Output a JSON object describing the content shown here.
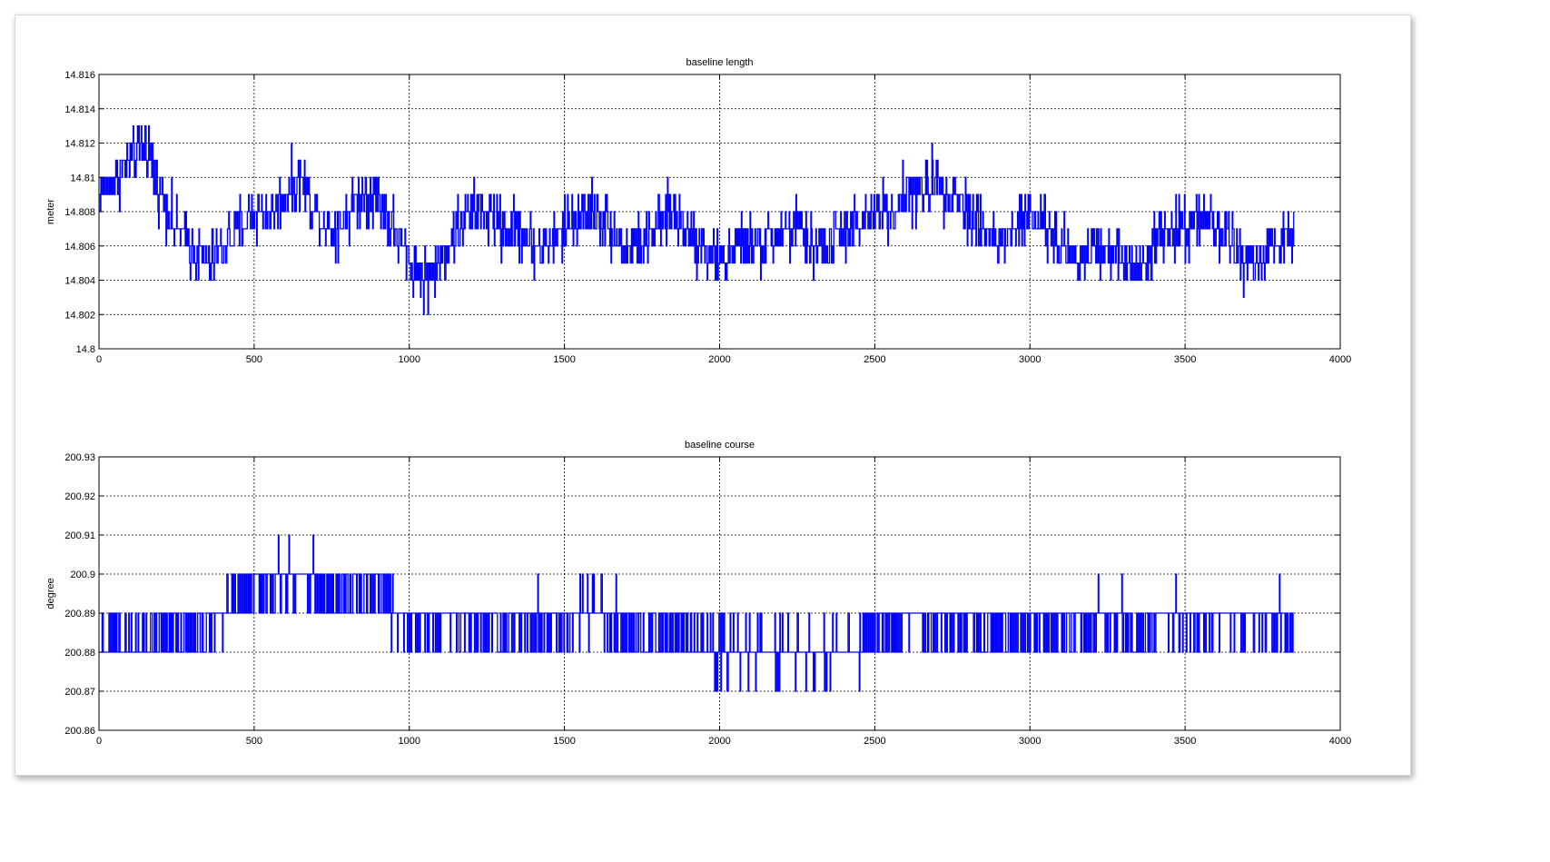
{
  "chart_data": [
    {
      "type": "line",
      "title": "baseline length",
      "xlabel": "",
      "ylabel": "meter",
      "xlim": [
        0,
        4000
      ],
      "ylim": [
        14.8,
        14.816
      ],
      "xticks": [
        0,
        500,
        1000,
        1500,
        2000,
        2500,
        3000,
        3500,
        4000
      ],
      "xtick_labels": [
        "0",
        "500",
        "1000",
        "1500",
        "2000",
        "2500",
        "3000",
        "3500",
        "4000"
      ],
      "yticks": [
        14.8,
        14.802,
        14.804,
        14.806,
        14.808,
        14.81,
        14.812,
        14.814,
        14.816
      ],
      "ytick_labels": [
        "14.8",
        "14.802",
        "14.804",
        "14.806",
        "14.808",
        "14.81",
        "14.812",
        "14.814",
        "14.816"
      ],
      "grid": true,
      "line_color": "#0000ff",
      "series": [
        {
          "x": [
            0,
            50,
            100,
            150,
            200,
            250,
            300,
            350,
            400,
            450,
            500,
            550,
            600,
            650,
            700,
            750,
            800,
            850,
            900,
            950,
            1000,
            1050,
            1100,
            1150,
            1200,
            1250,
            1300,
            1350,
            1400,
            1450,
            1500,
            1550,
            1600,
            1650,
            1700,
            1750,
            1800,
            1850,
            1900,
            1950,
            2000,
            2050,
            2100,
            2150,
            2200,
            2250,
            2300,
            2350,
            2400,
            2450,
            2500,
            2550,
            2600,
            2650,
            2700,
            2750,
            2800,
            2850,
            2900,
            2950,
            3000,
            3050,
            3100,
            3150,
            3200,
            3250,
            3300,
            3350,
            3400,
            3450,
            3500,
            3550,
            3600,
            3650,
            3700,
            3750,
            3800,
            3850
          ],
          "y": [
            14.809,
            14.81,
            14.811,
            14.812,
            14.809,
            14.807,
            14.806,
            14.805,
            14.806,
            14.807,
            14.808,
            14.808,
            14.809,
            14.81,
            14.808,
            14.807,
            14.808,
            14.809,
            14.809,
            14.807,
            14.805,
            14.804,
            14.805,
            14.807,
            14.808,
            14.808,
            14.807,
            14.807,
            14.806,
            14.806,
            14.807,
            14.808,
            14.808,
            14.807,
            14.806,
            14.806,
            14.807,
            14.808,
            14.807,
            14.806,
            14.805,
            14.806,
            14.806,
            14.806,
            14.807,
            14.807,
            14.806,
            14.806,
            14.807,
            14.807,
            14.808,
            14.808,
            14.809,
            14.809,
            14.81,
            14.809,
            14.808,
            14.807,
            14.806,
            14.807,
            14.808,
            14.807,
            14.806,
            14.805,
            14.806,
            14.806,
            14.805,
            14.805,
            14.806,
            14.807,
            14.807,
            14.808,
            14.807,
            14.806,
            14.805,
            14.805,
            14.806,
            14.807
          ],
          "spread": 0.0025
        }
      ]
    },
    {
      "type": "line",
      "title": "baseline course",
      "xlabel": "",
      "ylabel": "degree",
      "xlim": [
        0,
        4000
      ],
      "ylim": [
        200.86,
        200.93
      ],
      "xticks": [
        0,
        500,
        1000,
        1500,
        2000,
        2500,
        3000,
        3500,
        4000
      ],
      "xtick_labels": [
        "0",
        "500",
        "1000",
        "1500",
        "2000",
        "2500",
        "3000",
        "3500",
        "4000"
      ],
      "yticks": [
        200.86,
        200.87,
        200.88,
        200.89,
        200.9,
        200.91,
        200.92,
        200.93
      ],
      "ytick_labels": [
        "200.86",
        "200.87",
        "200.88",
        "200.89",
        "200.9",
        "200.91",
        "200.92",
        "200.93"
      ],
      "grid": true,
      "line_color": "#0000ff",
      "series": [
        {
          "x": [
            0,
            50,
            100,
            150,
            200,
            250,
            300,
            350,
            400,
            450,
            500,
            550,
            600,
            650,
            700,
            750,
            800,
            850,
            900,
            950,
            1000,
            1050,
            1100,
            1150,
            1200,
            1250,
            1300,
            1350,
            1400,
            1450,
            1500,
            1550,
            1600,
            1650,
            1700,
            1750,
            1800,
            1850,
            1900,
            1950,
            2000,
            2050,
            2100,
            2150,
            2200,
            2250,
            2300,
            2350,
            2400,
            2450,
            2500,
            2550,
            2600,
            2650,
            2700,
            2750,
            2800,
            2850,
            2900,
            2950,
            3000,
            3050,
            3100,
            3150,
            3200,
            3250,
            3300,
            3350,
            3400,
            3450,
            3500,
            3550,
            3600,
            3650,
            3700,
            3750,
            3800,
            3850
          ],
          "y": [
            200.884,
            200.884,
            200.884,
            200.884,
            200.885,
            200.885,
            200.886,
            200.887,
            200.89,
            200.893,
            200.895,
            200.897,
            200.898,
            200.899,
            200.897,
            200.893,
            200.895,
            200.896,
            200.897,
            200.889,
            200.887,
            200.888,
            200.888,
            200.887,
            200.888,
            200.887,
            200.886,
            200.887,
            200.888,
            200.887,
            200.887,
            200.888,
            200.892,
            200.887,
            200.884,
            200.885,
            200.885,
            200.886,
            200.884,
            200.882,
            200.881,
            200.881,
            200.882,
            200.881,
            200.879,
            200.879,
            200.88,
            200.879,
            200.881,
            200.882,
            200.885,
            200.886,
            200.887,
            200.887,
            200.886,
            200.886,
            200.886,
            200.885,
            200.886,
            200.886,
            200.887,
            200.886,
            200.886,
            200.886,
            200.887,
            200.889,
            200.886,
            200.885,
            200.886,
            200.887,
            200.888,
            200.888,
            200.889,
            200.889,
            200.889,
            200.887,
            200.887,
            200.886
          ],
          "spread": 0.011
        }
      ]
    }
  ]
}
